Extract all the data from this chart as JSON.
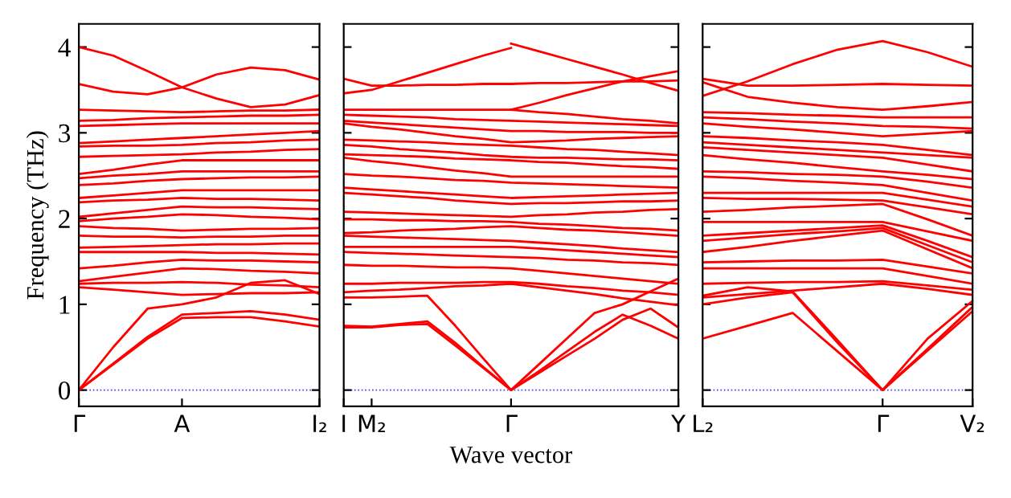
{
  "chart_data": [
    {
      "type": "line",
      "ylabel": "Frequency (THz)",
      "ylim": [
        -0.19,
        4.27
      ],
      "yticks": [
        0,
        1,
        2,
        3,
        4
      ],
      "categories": [
        "Γ",
        null,
        null,
        "A",
        null,
        null,
        null,
        "I₂"
      ],
      "grid": false,
      "ref_lines": [
        {
          "axis": "y",
          "value": 0,
          "color": "#4040ff",
          "line_style": "dotted"
        }
      ],
      "series": [
        {
          "color": "#ff0000",
          "values": [
            0,
            0.5,
            0.95,
            1.0,
            1.08,
            1.25,
            1.28,
            1.12
          ]
        },
        {
          "color": "#ff0000",
          "values": [
            0,
            0.3,
            0.6,
            0.84,
            0.85,
            0.85,
            0.8,
            0.74
          ]
        },
        {
          "color": "#ff0000",
          "values": [
            0,
            0.31,
            0.62,
            0.88,
            0.9,
            0.92,
            0.88,
            0.82
          ]
        },
        {
          "color": "#ff0000",
          "values": [
            4.0,
            3.9,
            3.72,
            3.53,
            3.4,
            3.3,
            3.33,
            3.44
          ]
        },
        {
          "color": "#ff0000",
          "values": [
            3.57,
            3.48,
            3.45,
            3.53,
            3.68,
            3.76,
            3.73,
            3.62
          ]
        },
        {
          "color": "#ff0000",
          "values": [
            3.27,
            3.26,
            3.25,
            3.24,
            3.25,
            3.26,
            3.26,
            3.27
          ]
        },
        {
          "color": "#ff0000",
          "values": [
            3.14,
            3.15,
            3.17,
            3.18,
            3.19,
            3.2,
            3.2,
            3.21
          ]
        },
        {
          "color": "#ff0000",
          "values": [
            3.08,
            3.09,
            3.1,
            3.11,
            3.11,
            3.11,
            3.11,
            3.11
          ]
        },
        {
          "color": "#ff0000",
          "values": [
            2.88,
            2.9,
            2.92,
            2.94,
            2.96,
            2.98,
            3.0,
            3.02
          ]
        },
        {
          "color": "#ff0000",
          "values": [
            2.84,
            2.85,
            2.85,
            2.86,
            2.88,
            2.89,
            2.91,
            2.92
          ]
        },
        {
          "color": "#ff0000",
          "values": [
            2.72,
            2.73,
            2.74,
            2.75,
            2.77,
            2.78,
            2.8,
            2.81
          ]
        },
        {
          "color": "#ff0000",
          "values": [
            2.52,
            2.57,
            2.63,
            2.68,
            2.68,
            2.68,
            2.68,
            2.68
          ]
        },
        {
          "color": "#ff0000",
          "values": [
            2.47,
            2.5,
            2.52,
            2.55,
            2.55,
            2.55,
            2.55,
            2.55
          ]
        },
        {
          "color": "#ff0000",
          "values": [
            2.39,
            2.41,
            2.44,
            2.46,
            2.47,
            2.48,
            2.48,
            2.49
          ]
        },
        {
          "color": "#ff0000",
          "values": [
            2.24,
            2.27,
            2.3,
            2.33,
            2.33,
            2.33,
            2.33,
            2.33
          ]
        },
        {
          "color": "#ff0000",
          "values": [
            2.19,
            2.21,
            2.22,
            2.24,
            2.23,
            2.23,
            2.22,
            2.21
          ]
        },
        {
          "color": "#ff0000",
          "values": [
            2.02,
            2.06,
            2.1,
            2.14,
            2.13,
            2.13,
            2.12,
            2.11
          ]
        },
        {
          "color": "#ff0000",
          "values": [
            1.97,
            2.0,
            2.02,
            2.05,
            2.04,
            2.02,
            2.01,
            1.99
          ]
        },
        {
          "color": "#ff0000",
          "values": [
            1.91,
            1.89,
            1.88,
            1.86,
            1.87,
            1.88,
            1.88,
            1.89
          ]
        },
        {
          "color": "#ff0000",
          "values": [
            1.8,
            1.79,
            1.79,
            1.78,
            1.79,
            1.79,
            1.8,
            1.8
          ]
        },
        {
          "color": "#ff0000",
          "values": [
            1.66,
            1.67,
            1.68,
            1.69,
            1.7,
            1.7,
            1.71,
            1.71
          ]
        },
        {
          "color": "#ff0000",
          "values": [
            1.61,
            1.61,
            1.61,
            1.61,
            1.6,
            1.6,
            1.59,
            1.58
          ]
        },
        {
          "color": "#ff0000",
          "values": [
            1.42,
            1.45,
            1.49,
            1.52,
            1.51,
            1.51,
            1.5,
            1.49
          ]
        },
        {
          "color": "#ff0000",
          "values": [
            1.27,
            1.32,
            1.37,
            1.42,
            1.41,
            1.39,
            1.38,
            1.36
          ]
        },
        {
          "color": "#ff0000",
          "values": [
            1.24,
            1.25,
            1.25,
            1.26,
            1.25,
            1.23,
            1.22,
            1.2
          ]
        },
        {
          "color": "#ff0000",
          "values": [
            1.2,
            1.17,
            1.14,
            1.11,
            1.12,
            1.13,
            1.13,
            1.14
          ]
        }
      ]
    },
    {
      "type": "line",
      "xlabel": "Wave vector",
      "ylim": [
        -0.19,
        4.27
      ],
      "yticks": [
        0,
        1,
        2,
        3,
        4
      ],
      "tick_labels": "x",
      "categories": [
        "I",
        "M₂",
        null,
        null,
        null,
        null,
        "Γ",
        null,
        null,
        null,
        null,
        null,
        "Y"
      ],
      "grid": false,
      "ref_lines": [
        {
          "axis": "y",
          "value": 0,
          "color": "#4040ff",
          "line_style": "dotted"
        }
      ],
      "series": [
        {
          "color": "#ff0000",
          "values": [
            0.75,
            0.74,
            0.77,
            0.8,
            0.55,
            0.27,
            0,
            0.22,
            0.45,
            0.68,
            0.88,
            0.75,
            0.6
          ]
        },
        {
          "color": "#ff0000",
          "values": [
            0.73,
            0.73,
            0.76,
            0.77,
            0.52,
            0.26,
            0,
            0.2,
            0.4,
            0.6,
            0.82,
            0.95,
            0.73
          ]
        },
        {
          "color": "#ff0000",
          "values": [
            1.08,
            1.08,
            1.09,
            1.1,
            0.75,
            0.37,
            0,
            0.3,
            0.6,
            0.9,
            1.0,
            1.15,
            1.3
          ]
        },
        {
          "color": "#ff0000",
          "values": [
            3.46,
            3.5,
            3.6,
            3.7,
            3.8,
            3.9,
            3.99,
            null,
            null,
            null,
            null,
            null,
            null
          ]
        },
        {
          "color": "#ff0000",
          "values": [
            3.63,
            3.55,
            3.55,
            3.56,
            3.56,
            3.57,
            3.57,
            3.58,
            3.58,
            3.59,
            3.6,
            3.6,
            3.61
          ]
        },
        {
          "color": "#ff0000",
          "values": [
            null,
            null,
            null,
            null,
            null,
            null,
            4.04,
            3.95,
            3.86,
            3.77,
            3.68,
            3.58,
            3.49
          ]
        },
        {
          "color": "#ff0000",
          "values": [
            null,
            null,
            null,
            null,
            null,
            null,
            3.27,
            3.35,
            3.44,
            3.52,
            3.6,
            3.66,
            3.72
          ]
        },
        {
          "color": "#ff0000",
          "values": [
            3.27,
            3.27,
            3.27,
            3.27,
            3.27,
            3.27,
            3.27,
            3.24,
            3.22,
            3.19,
            3.16,
            3.14,
            3.11
          ]
        },
        {
          "color": "#ff0000",
          "values": [
            3.21,
            3.2,
            3.19,
            3.18,
            3.16,
            3.15,
            3.14,
            3.13,
            3.12,
            3.11,
            3.1,
            3.09,
            3.08
          ]
        },
        {
          "color": "#ff0000",
          "values": [
            3.14,
            3.12,
            3.1,
            3.08,
            3.06,
            3.04,
            3.02,
            3.02,
            3.01,
            3.01,
            3.01,
            3.0,
            3.0
          ]
        },
        {
          "color": "#ff0000",
          "values": [
            3.11,
            3.07,
            3.04,
            3.0,
            2.96,
            2.93,
            2.89,
            2.9,
            2.91,
            2.93,
            2.94,
            2.95,
            2.96
          ]
        },
        {
          "color": "#ff0000",
          "values": [
            2.92,
            2.91,
            2.9,
            2.89,
            2.87,
            2.86,
            2.85,
            2.83,
            2.81,
            2.8,
            2.78,
            2.76,
            2.74
          ]
        },
        {
          "color": "#ff0000",
          "values": [
            2.86,
            2.84,
            2.81,
            2.79,
            2.77,
            2.74,
            2.72,
            2.71,
            2.71,
            2.7,
            2.69,
            2.69,
            2.68
          ]
        },
        {
          "color": "#ff0000",
          "values": [
            2.75,
            2.74,
            2.73,
            2.72,
            2.7,
            2.69,
            2.68,
            2.66,
            2.65,
            2.63,
            2.61,
            2.6,
            2.58
          ]
        },
        {
          "color": "#ff0000",
          "values": [
            2.71,
            2.67,
            2.64,
            2.6,
            2.56,
            2.53,
            2.49,
            2.49,
            2.49,
            2.49,
            2.49,
            2.49,
            2.49
          ]
        },
        {
          "color": "#ff0000",
          "values": [
            2.52,
            2.5,
            2.49,
            2.47,
            2.45,
            2.44,
            2.42,
            2.41,
            2.4,
            2.39,
            2.38,
            2.37,
            2.36
          ]
        },
        {
          "color": "#ff0000",
          "values": [
            2.36,
            2.34,
            2.32,
            2.3,
            2.28,
            2.26,
            2.24,
            2.25,
            2.26,
            2.27,
            2.28,
            2.29,
            2.3
          ]
        },
        {
          "color": "#ff0000",
          "values": [
            2.3,
            2.28,
            2.26,
            2.24,
            2.21,
            2.19,
            2.17,
            2.18,
            2.18,
            2.19,
            2.2,
            2.2,
            2.21
          ]
        },
        {
          "color": "#ff0000",
          "values": [
            2.08,
            2.07,
            2.06,
            2.05,
            2.04,
            2.03,
            2.02,
            2.04,
            2.05,
            2.07,
            2.08,
            2.1,
            2.11
          ]
        },
        {
          "color": "#ff0000",
          "values": [
            1.99,
            1.99,
            1.98,
            1.98,
            1.97,
            1.97,
            1.96,
            1.94,
            1.93,
            1.91,
            1.89,
            1.88,
            1.86
          ]
        },
        {
          "color": "#ff0000",
          "values": [
            1.83,
            1.84,
            1.86,
            1.87,
            1.88,
            1.9,
            1.91,
            1.89,
            1.87,
            1.86,
            1.84,
            1.82,
            1.8
          ]
        },
        {
          "color": "#ff0000",
          "values": [
            1.8,
            1.79,
            1.78,
            1.77,
            1.76,
            1.75,
            1.74,
            1.72,
            1.7,
            1.68,
            1.65,
            1.63,
            1.61
          ]
        },
        {
          "color": "#ff0000",
          "values": [
            1.67,
            1.67,
            1.67,
            1.67,
            1.67,
            1.67,
            1.67,
            1.65,
            1.63,
            1.61,
            1.59,
            1.57,
            1.55
          ]
        },
        {
          "color": "#ff0000",
          "values": [
            1.61,
            1.6,
            1.59,
            1.58,
            1.57,
            1.56,
            1.55,
            1.54,
            1.52,
            1.51,
            1.49,
            1.48,
            1.46
          ]
        },
        {
          "color": "#ff0000",
          "values": [
            1.46,
            1.45,
            1.45,
            1.44,
            1.43,
            1.43,
            1.42,
            1.39,
            1.36,
            1.33,
            1.3,
            1.27,
            1.24
          ]
        },
        {
          "color": "#ff0000",
          "values": [
            1.24,
            1.24,
            1.25,
            1.25,
            1.25,
            1.26,
            1.26,
            1.24,
            1.21,
            1.19,
            1.16,
            1.14,
            1.11
          ]
        },
        {
          "color": "#ff0000",
          "values": [
            1.14,
            1.16,
            1.17,
            1.19,
            1.21,
            1.22,
            1.24,
            1.2,
            1.16,
            1.12,
            1.07,
            1.03,
            0.99
          ]
        }
      ]
    },
    {
      "type": "line",
      "ylim": [
        -0.19,
        4.27
      ],
      "yticks": [
        0,
        1,
        2,
        3,
        4
      ],
      "tick_labels": "x",
      "categories": [
        "L₂",
        null,
        null,
        null,
        "Γ",
        null,
        "V₂"
      ],
      "grid": false,
      "ref_lines": [
        {
          "axis": "y",
          "value": 0,
          "color": "#4040ff",
          "line_style": "dotted"
        }
      ],
      "series": [
        {
          "color": "#ff0000",
          "values": [
            0.6,
            0.75,
            0.9,
            0.45,
            0,
            0.46,
            0.92
          ]
        },
        {
          "color": "#ff0000",
          "values": [
            1.0,
            1.08,
            1.14,
            0.55,
            0,
            0.48,
            0.97
          ]
        },
        {
          "color": "#ff0000",
          "values": [
            1.1,
            1.2,
            1.15,
            0.58,
            0,
            0.6,
            1.04
          ]
        },
        {
          "color": "#ff0000",
          "values": [
            3.63,
            3.55,
            3.55,
            3.56,
            3.57,
            3.56,
            3.55
          ]
        },
        {
          "color": "#ff0000",
          "values": [
            3.43,
            3.6,
            3.8,
            3.97,
            4.07,
            3.94,
            3.77
          ]
        },
        {
          "color": "#ff0000",
          "values": [
            3.59,
            3.42,
            3.35,
            3.3,
            3.27,
            3.31,
            3.36
          ]
        },
        {
          "color": "#ff0000",
          "values": [
            3.24,
            3.23,
            3.21,
            3.2,
            3.18,
            3.18,
            3.18
          ]
        },
        {
          "color": "#ff0000",
          "values": [
            3.18,
            3.16,
            3.13,
            3.11,
            3.08,
            3.07,
            3.05
          ]
        },
        {
          "color": "#ff0000",
          "values": [
            3.11,
            3.07,
            3.04,
            3.0,
            2.96,
            2.99,
            3.02
          ]
        },
        {
          "color": "#ff0000",
          "values": [
            2.96,
            2.94,
            2.91,
            2.89,
            2.86,
            2.8,
            2.74
          ]
        },
        {
          "color": "#ff0000",
          "values": [
            2.89,
            2.86,
            2.83,
            2.8,
            2.77,
            2.74,
            2.71
          ]
        },
        {
          "color": "#ff0000",
          "values": [
            2.83,
            2.8,
            2.77,
            2.74,
            2.71,
            2.63,
            2.55
          ]
        },
        {
          "color": "#ff0000",
          "values": [
            2.74,
            2.69,
            2.65,
            2.6,
            2.55,
            2.51,
            2.46
          ]
        },
        {
          "color": "#ff0000",
          "values": [
            2.55,
            2.54,
            2.52,
            2.51,
            2.49,
            2.43,
            2.36
          ]
        },
        {
          "color": "#ff0000",
          "values": [
            2.49,
            2.47,
            2.44,
            2.42,
            2.39,
            2.3,
            2.21
          ]
        },
        {
          "color": "#ff0000",
          "values": [
            2.3,
            2.3,
            2.3,
            2.3,
            2.3,
            2.22,
            2.14
          ]
        },
        {
          "color": "#ff0000",
          "values": [
            2.24,
            2.23,
            2.23,
            2.22,
            2.21,
            2.13,
            2.05
          ]
        },
        {
          "color": "#ff0000",
          "values": [
            2.08,
            2.1,
            2.13,
            2.15,
            2.17,
            1.99,
            1.8
          ]
        },
        {
          "color": "#ff0000",
          "values": [
            1.96,
            1.96,
            1.96,
            1.96,
            1.96,
            1.85,
            1.74
          ]
        },
        {
          "color": "#ff0000",
          "values": [
            1.8,
            1.83,
            1.86,
            1.89,
            1.92,
            1.74,
            1.55
          ]
        },
        {
          "color": "#ff0000",
          "values": [
            1.74,
            1.78,
            1.82,
            1.85,
            1.89,
            1.69,
            1.49
          ]
        },
        {
          "color": "#ff0000",
          "values": [
            1.61,
            1.67,
            1.74,
            1.8,
            1.86,
            1.64,
            1.42
          ]
        },
        {
          "color": "#ff0000",
          "values": [
            1.49,
            1.5,
            1.51,
            1.51,
            1.52,
            1.44,
            1.36
          ]
        },
        {
          "color": "#ff0000",
          "values": [
            1.42,
            1.42,
            1.42,
            1.42,
            1.42,
            1.33,
            1.24
          ]
        },
        {
          "color": "#ff0000",
          "values": [
            1.24,
            1.25,
            1.26,
            1.26,
            1.27,
            1.22,
            1.17
          ]
        },
        {
          "color": "#ff0000",
          "values": [
            1.08,
            1.12,
            1.16,
            1.2,
            1.24,
            1.18,
            1.11
          ]
        }
      ]
    }
  ]
}
